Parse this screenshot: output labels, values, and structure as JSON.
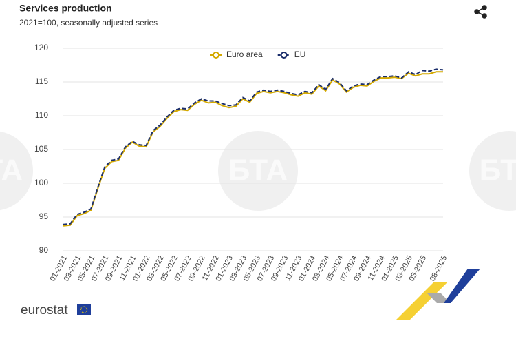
{
  "chart_data": {
    "type": "line",
    "title": "Services production",
    "subtitle": "2021=100, seasonally adjusted series",
    "categories": [
      "01-2021",
      null,
      "03-2021",
      null,
      "05-2021",
      null,
      "07-2021",
      null,
      "09-2021",
      null,
      "11-2021",
      null,
      "01-2022",
      null,
      "03-2022",
      null,
      "05-2022",
      null,
      "07-2022",
      null,
      "09-2022",
      null,
      "11-2022",
      null,
      "01-2023",
      null,
      "03-2023",
      null,
      "05-2023",
      null,
      "07-2023",
      null,
      "09-2023",
      null,
      "11-2023",
      null,
      "01-2024",
      null,
      "03-2024",
      null,
      "05-2024",
      null,
      "07-2024",
      null,
      "09-2024",
      null,
      "11-2024",
      null,
      "01-2025",
      null,
      "03-2025",
      null,
      "05-2025",
      null,
      null,
      "08-2025"
    ],
    "series": [
      {
        "name": "Euro area",
        "color": "#d4a900",
        "dash": false,
        "values": [
          93.7,
          93.8,
          95.2,
          95.5,
          96.0,
          99.2,
          102.2,
          103.2,
          103.4,
          105.2,
          106.1,
          105.5,
          105.4,
          107.6,
          108.4,
          109.6,
          110.6,
          110.9,
          110.8,
          111.7,
          112.3,
          111.9,
          112.0,
          111.5,
          111.2,
          111.4,
          112.5,
          112.0,
          113.3,
          113.6,
          113.4,
          113.6,
          113.4,
          113.1,
          112.9,
          113.4,
          113.2,
          114.4,
          113.7,
          115.3,
          114.7,
          113.5,
          114.2,
          114.5,
          114.4,
          115.1,
          115.6,
          115.6,
          115.7,
          115.5,
          116.3,
          115.9,
          116.2,
          116.2,
          116.5,
          116.5
        ]
      },
      {
        "name": "EU",
        "color": "#1a2d6b",
        "dash": true,
        "values": [
          93.9,
          94.0,
          95.4,
          95.7,
          96.2,
          99.4,
          102.4,
          103.4,
          103.6,
          105.4,
          106.2,
          105.7,
          105.6,
          107.8,
          108.6,
          109.8,
          110.8,
          111.1,
          111.0,
          111.9,
          112.5,
          112.2,
          112.2,
          111.8,
          111.5,
          111.6,
          112.7,
          112.2,
          113.5,
          113.8,
          113.6,
          113.8,
          113.6,
          113.3,
          113.1,
          113.6,
          113.4,
          114.6,
          113.9,
          115.5,
          114.9,
          113.7,
          114.4,
          114.7,
          114.6,
          115.3,
          115.8,
          115.8,
          115.9,
          115.6,
          116.5,
          116.1,
          116.7,
          116.6,
          116.9,
          116.8
        ]
      }
    ],
    "ylim": [
      90,
      120
    ],
    "yticks": [
      90,
      95,
      100,
      105,
      110,
      115,
      120
    ],
    "grid": true,
    "legend": "top"
  },
  "logo": "eurostat",
  "watermark": "БТА"
}
